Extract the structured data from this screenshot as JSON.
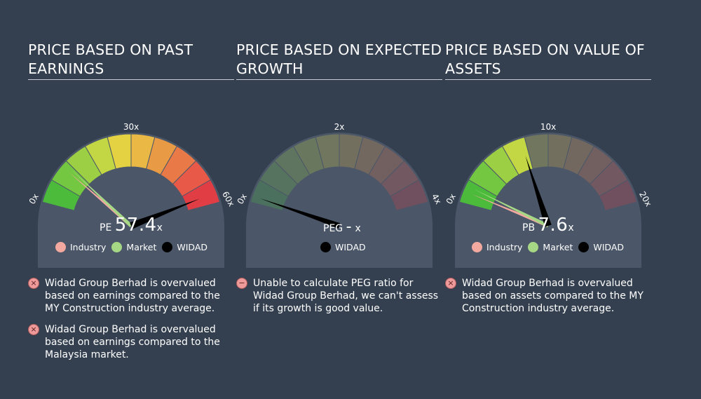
{
  "colors": {
    "background": "#344050",
    "industry": "#f4a9a0",
    "market": "#a6d785",
    "company": "#000000",
    "note_icon": "#ef9a9a"
  },
  "panels": [
    {
      "title": "PRICE BASED ON PAST EARNINGS",
      "metric": "PE",
      "value_text": "57.4",
      "suffix": "x",
      "scale_labels": {
        "min": "0x",
        "mid": "30x",
        "max": "60x"
      },
      "legend": [
        {
          "label": "Industry",
          "color_key": "industry"
        },
        {
          "label": "Market",
          "color_key": "market"
        },
        {
          "label": "WIDAD",
          "color_key": "company"
        }
      ],
      "notes": [
        {
          "icon": "cross-icon",
          "text": "Widad Group Berhad is overvalued based on earnings compared to the MY Construction industry average."
        },
        {
          "icon": "cross-icon",
          "text": "Widad Group Berhad is overvalued based on earnings compared to the Malaysia market."
        }
      ]
    },
    {
      "title": "PRICE BASED ON EXPECTED GROWTH",
      "metric": "PEG",
      "value_text": "-",
      "suffix": "x",
      "scale_labels": {
        "min": "0x",
        "mid": "2x",
        "max": "4x"
      },
      "legend": [
        {
          "label": "WIDAD",
          "color_key": "company"
        }
      ],
      "notes": [
        {
          "icon": "minus-icon",
          "text": "Unable to calculate PEG ratio for Widad Group Berhad, we can't assess if its growth is good value."
        }
      ]
    },
    {
      "title": "PRICE BASED ON VALUE OF ASSETS",
      "metric": "PB",
      "value_text": "7.6",
      "suffix": "x",
      "scale_labels": {
        "min": "0x",
        "mid": "10x",
        "max": "20x"
      },
      "legend": [
        {
          "label": "Industry",
          "color_key": "industry"
        },
        {
          "label": "Market",
          "color_key": "market"
        },
        {
          "label": "WIDAD",
          "color_key": "company"
        }
      ],
      "notes": [
        {
          "icon": "cross-icon",
          "text": "Widad Group Berhad is overvalued based on assets compared to the MY Construction industry average."
        }
      ]
    }
  ],
  "chart_data": [
    {
      "type": "gauge",
      "title": "PRICE BASED ON PAST EARNINGS",
      "metric": "PE",
      "range": [
        0,
        60
      ],
      "ticks": [
        "0x",
        "30x",
        "60x"
      ],
      "series": [
        {
          "name": "Industry",
          "value": 10.3
        },
        {
          "name": "Market",
          "value": 11.3
        },
        {
          "name": "WIDAD",
          "value": 57.4
        }
      ]
    },
    {
      "type": "gauge",
      "title": "PRICE BASED ON EXPECTED GROWTH",
      "metric": "PEG",
      "range": [
        0,
        4
      ],
      "ticks": [
        "0x",
        "2x",
        "4x"
      ],
      "series": [
        {
          "name": "WIDAD",
          "value": null
        }
      ]
    },
    {
      "type": "gauge",
      "title": "PRICE BASED ON VALUE OF ASSETS",
      "metric": "PB",
      "range": [
        0,
        20
      ],
      "ticks": [
        "0x",
        "10x",
        "20x"
      ],
      "series": [
        {
          "name": "Industry",
          "value": 1.0
        },
        {
          "name": "Market",
          "value": 1.5
        },
        {
          "name": "WIDAD",
          "value": 7.6
        }
      ]
    }
  ]
}
